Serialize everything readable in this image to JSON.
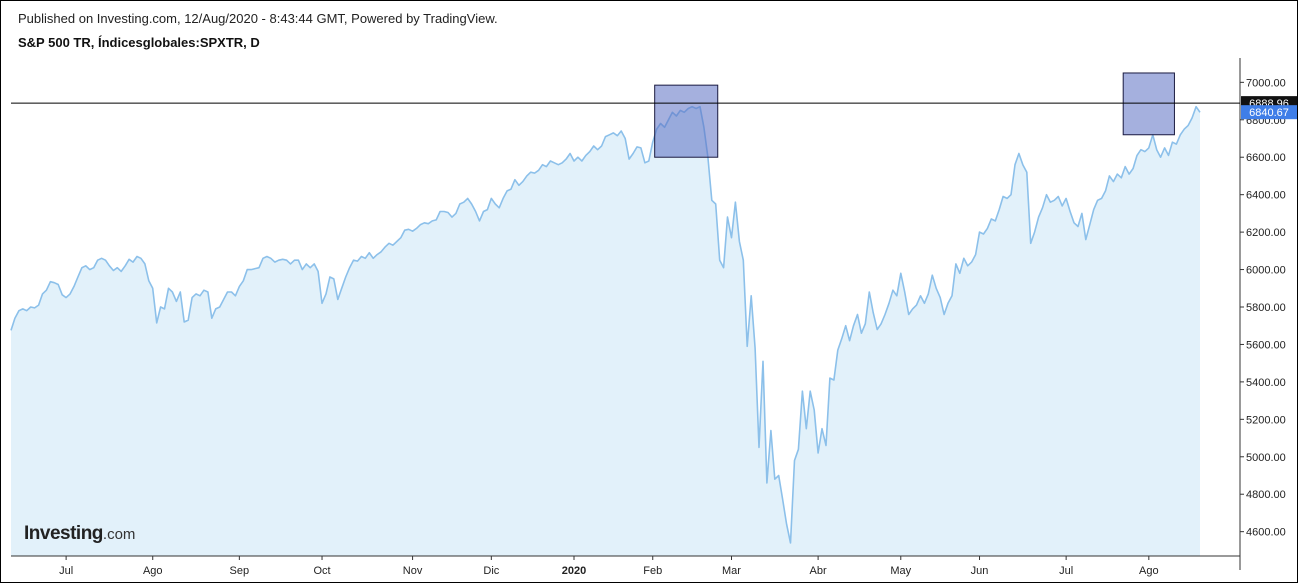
{
  "header": {
    "published": "Published on Investing.com, 12/Aug/2020 - 8:43:44 GMT, Powered by TradingView."
  },
  "title": "S&P 500 TR, Índicesglobales:SPXTR, D",
  "logo": {
    "brand": "Investing",
    "suffix": ".com"
  },
  "chart_data": {
    "type": "area",
    "ylim": [
      4470,
      7130
    ],
    "yticks": [
      4600,
      4800,
      5000,
      5200,
      5400,
      5600,
      5800,
      6000,
      6200,
      6400,
      6600,
      6800,
      7000
    ],
    "ytick_labels": [
      "4600.00",
      "4800.00",
      "5000.00",
      "5200.00",
      "5400.00",
      "5600.00",
      "5800.00",
      "6000.00",
      "6200.00",
      "6400.00",
      "6600.00",
      "6800.00",
      "7000.00"
    ],
    "x_tick_labels": [
      {
        "label": "Jul",
        "idx": 14
      },
      {
        "label": "Ago",
        "idx": 36
      },
      {
        "label": "Sep",
        "idx": 58
      },
      {
        "label": "Oct",
        "idx": 79
      },
      {
        "label": "Nov",
        "idx": 102
      },
      {
        "label": "Dic",
        "idx": 122
      },
      {
        "label": "2020",
        "idx": 143,
        "bold": true
      },
      {
        "label": "Feb",
        "idx": 163
      },
      {
        "label": "Mar",
        "idx": 183
      },
      {
        "label": "Abr",
        "idx": 205
      },
      {
        "label": "May",
        "idx": 226
      },
      {
        "label": "Jun",
        "idx": 246
      },
      {
        "label": "Jul",
        "idx": 268
      },
      {
        "label": "Ago",
        "idx": 289
      }
    ],
    "crosshair_value": 6888.96,
    "crosshair_label": "6888.96",
    "last_value": 6840.67,
    "last_label": "6840.67",
    "colors": {
      "line": "#8cc0ea",
      "fill": "#e2f1fa",
      "box": "#5b6fc2",
      "last": "#3f7ee8",
      "crosshair_tag": "#111111"
    },
    "highlight_boxes": [
      {
        "idx_range": [
          164,
          179
        ],
        "value_range": [
          6600,
          6985
        ]
      },
      {
        "idx_range": [
          283,
          295
        ],
        "value_range": [
          6720,
          7050
        ]
      }
    ],
    "series": [
      {
        "values": [
          5675,
          5740,
          5780,
          5790,
          5780,
          5800,
          5795,
          5810,
          5870,
          5890,
          5935,
          5930,
          5920,
          5865,
          5850,
          5870,
          5910,
          5960,
          6010,
          6020,
          6000,
          6010,
          6050,
          6060,
          6050,
          6020,
          5995,
          6010,
          5990,
          6020,
          6055,
          6040,
          6070,
          6060,
          6030,
          5940,
          5900,
          5715,
          5800,
          5790,
          5900,
          5880,
          5830,
          5880,
          5720,
          5730,
          5850,
          5870,
          5860,
          5890,
          5880,
          5740,
          5790,
          5800,
          5840,
          5880,
          5880,
          5860,
          5910,
          5940,
          6000,
          6000,
          6005,
          6010,
          6060,
          6070,
          6060,
          6040,
          6050,
          6055,
          6050,
          6030,
          6050,
          6050,
          6000,
          6030,
          6010,
          6030,
          5990,
          5820,
          5870,
          5960,
          5950,
          5840,
          5900,
          5960,
          6010,
          6050,
          6045,
          6070,
          6060,
          6090,
          6060,
          6080,
          6095,
          6120,
          6140,
          6130,
          6150,
          6170,
          6210,
          6215,
          6205,
          6220,
          6240,
          6250,
          6245,
          6260,
          6265,
          6310,
          6310,
          6305,
          6280,
          6300,
          6350,
          6360,
          6380,
          6350,
          6310,
          6260,
          6310,
          6320,
          6380,
          6350,
          6330,
          6380,
          6420,
          6430,
          6480,
          6450,
          6470,
          6500,
          6520,
          6515,
          6530,
          6560,
          6550,
          6580,
          6570,
          6560,
          6570,
          6590,
          6620,
          6580,
          6600,
          6580,
          6610,
          6630,
          6660,
          6640,
          6660,
          6710,
          6720,
          6730,
          6715,
          6740,
          6700,
          6590,
          6620,
          6655,
          6650,
          6570,
          6580,
          6680,
          6750,
          6780,
          6760,
          6800,
          6840,
          6820,
          6850,
          6840,
          6860,
          6870,
          6860,
          6870,
          6760,
          6600,
          6370,
          6350,
          6050,
          6010,
          6280,
          6170,
          6360,
          6150,
          6050,
          5590,
          5860,
          5580,
          5050,
          5510,
          4860,
          5140,
          4880,
          4900,
          4770,
          4640,
          4540,
          4980,
          5040,
          5350,
          5150,
          5350,
          5250,
          5020,
          5150,
          5060,
          5420,
          5410,
          5570,
          5630,
          5700,
          5620,
          5700,
          5760,
          5660,
          5710,
          5880,
          5770,
          5680,
          5710,
          5760,
          5820,
          5890,
          5860,
          5980,
          5880,
          5760,
          5790,
          5810,
          5860,
          5820,
          5870,
          5970,
          5900,
          5850,
          5760,
          5820,
          5860,
          6030,
          5980,
          6060,
          6020,
          6040,
          6080,
          6200,
          6190,
          6220,
          6270,
          6260,
          6320,
          6390,
          6380,
          6400,
          6560,
          6620,
          6560,
          6520,
          6140,
          6200,
          6280,
          6330,
          6400,
          6360,
          6370,
          6390,
          6340,
          6380,
          6310,
          6250,
          6230,
          6300,
          6160,
          6240,
          6320,
          6370,
          6380,
          6420,
          6500,
          6470,
          6510,
          6490,
          6550,
          6510,
          6540,
          6610,
          6640,
          6630,
          6650,
          6720,
          6640,
          6600,
          6650,
          6610,
          6680,
          6670,
          6720,
          6750,
          6770,
          6810,
          6870,
          6840
        ]
      }
    ]
  }
}
